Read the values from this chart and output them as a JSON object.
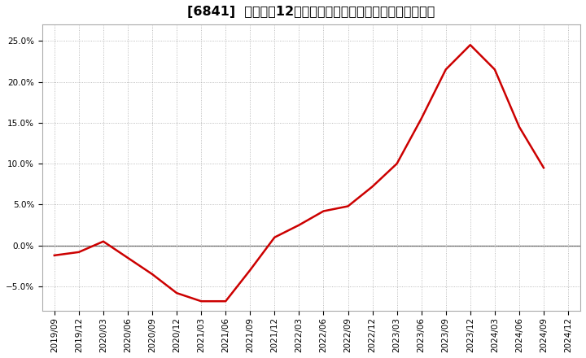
{
  "title": "[6841]  売上高の12か月移動合計の対前年同期増減率の推移",
  "x_labels": [
    "2019/09",
    "2019/12",
    "2020/03",
    "2020/06",
    "2020/09",
    "2020/12",
    "2021/03",
    "2021/06",
    "2021/09",
    "2021/12",
    "2022/03",
    "2022/06",
    "2022/09",
    "2022/12",
    "2023/03",
    "2023/06",
    "2023/09",
    "2023/12",
    "2024/03",
    "2024/06",
    "2024/09",
    "2024/12"
  ],
  "y_values": [
    -0.012,
    -0.008,
    0.005,
    -0.015,
    -0.035,
    -0.058,
    -0.068,
    -0.068,
    -0.03,
    0.01,
    0.025,
    0.042,
    0.048,
    0.072,
    0.1,
    0.155,
    0.215,
    0.245,
    0.215,
    0.145,
    0.095,
    null
  ],
  "line_color": "#cc0000",
  "line_width": 1.8,
  "bg_color": "#ffffff",
  "grid_color": "#aaaaaa",
  "zero_line_color": "#555555",
  "ylim_low": -0.08,
  "ylim_high": 0.27,
  "yticks": [
    -0.05,
    0.0,
    0.05,
    0.1,
    0.15,
    0.2,
    0.25
  ],
  "title_fontsize": 11.5,
  "tick_fontsize": 7.5
}
